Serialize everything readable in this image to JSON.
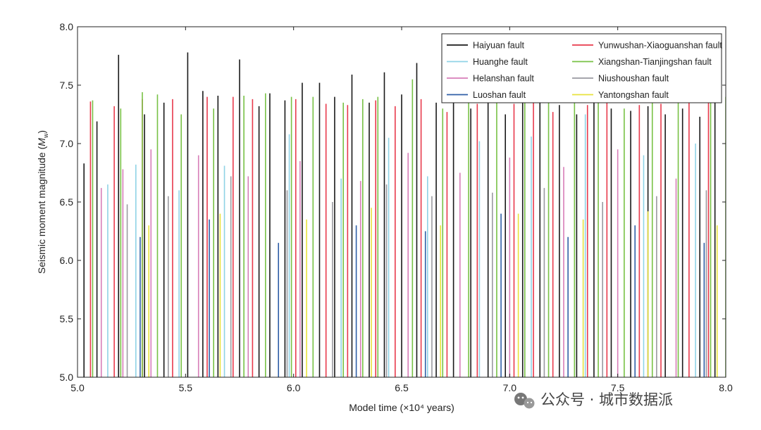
{
  "chart_data": {
    "type": "bar",
    "title": "",
    "xlabel": "Model time (×10⁴ years)",
    "ylabel": "Seismic moment magnitude (Mw)",
    "xlim": [
      5.0,
      8.0
    ],
    "ylim": [
      5.0,
      8.0
    ],
    "xticks": [
      "5.0",
      "5.5",
      "6.0",
      "6.5",
      "7.0",
      "7.5",
      "8.0"
    ],
    "yticks": [
      "5.0",
      "5.5",
      "6.0",
      "6.5",
      "7.0",
      "7.5",
      "8.0"
    ],
    "legend_position": "top-right",
    "series": [
      {
        "name": "Haiyuan fault",
        "color": "#1a1a1a",
        "x": [
          5.03,
          5.09,
          5.19,
          5.31,
          5.4,
          5.51,
          5.58,
          5.65,
          5.75,
          5.84,
          5.89,
          5.96,
          6.04,
          6.12,
          6.19,
          6.27,
          6.35,
          6.42,
          6.5,
          6.57,
          6.66,
          6.74,
          6.82,
          6.9,
          6.98,
          7.06,
          7.14,
          7.23,
          7.31,
          7.39,
          7.47,
          7.56,
          7.64,
          7.72,
          7.8,
          7.88,
          7.95
        ],
        "y": [
          6.83,
          7.19,
          7.76,
          7.25,
          7.35,
          7.78,
          7.45,
          7.41,
          7.72,
          7.32,
          7.43,
          7.37,
          7.52,
          7.52,
          7.4,
          7.59,
          7.35,
          7.61,
          7.42,
          7.69,
          7.35,
          7.45,
          7.3,
          7.38,
          7.25,
          7.4,
          7.4,
          7.33,
          7.25,
          7.35,
          7.3,
          7.28,
          7.32,
          7.25,
          7.3,
          7.23,
          7.38
        ]
      },
      {
        "name": "Huanghe fault",
        "color": "#8fd3e6",
        "x": [
          5.14,
          5.27,
          5.47,
          5.68,
          5.98,
          6.22,
          6.44,
          6.62,
          6.86,
          7.1,
          7.35,
          7.62,
          7.86
        ],
        "y": [
          6.65,
          6.82,
          6.6,
          6.81,
          7.08,
          6.7,
          7.05,
          6.72,
          7.02,
          7.06,
          7.25,
          6.9,
          7.0
        ]
      },
      {
        "name": "Helanshan fault",
        "color": "#d77db8",
        "x": [
          5.11,
          5.21,
          5.34,
          5.56,
          5.79,
          6.03,
          6.31,
          6.53,
          6.77,
          7.0,
          7.25,
          7.5,
          7.77
        ],
        "y": [
          6.62,
          6.78,
          6.95,
          6.9,
          6.72,
          6.85,
          6.68,
          6.92,
          6.75,
          6.88,
          6.8,
          6.95,
          6.7
        ]
      },
      {
        "name": "Luoshan fault",
        "color": "#2f5fa6",
        "x": [
          5.29,
          5.61,
          5.93,
          6.29,
          6.61,
          6.96,
          7.27,
          7.58,
          7.9
        ],
        "y": [
          6.2,
          6.35,
          6.15,
          6.3,
          6.25,
          6.4,
          6.2,
          6.3,
          6.15
        ]
      },
      {
        "name": "Yunwushan-Xiaoguanshan fault",
        "color": "#e83a4c",
        "x": [
          5.06,
          5.17,
          5.3,
          5.44,
          5.6,
          5.72,
          5.81,
          6.01,
          6.15,
          6.25,
          6.38,
          6.47,
          6.59,
          6.71,
          6.85,
          7.02,
          7.11,
          7.2,
          7.36,
          7.45,
          7.6,
          7.7,
          7.83,
          7.92
        ],
        "y": [
          7.36,
          7.32,
          7.38,
          7.38,
          7.4,
          7.4,
          7.38,
          7.38,
          7.34,
          7.33,
          7.37,
          7.32,
          7.38,
          7.27,
          7.34,
          7.34,
          7.37,
          7.27,
          7.33,
          7.36,
          7.33,
          7.34,
          7.35,
          7.37
        ]
      },
      {
        "name": "Xiangshan-Tianjingshan fault",
        "color": "#78c145",
        "x": [
          5.07,
          5.2,
          5.3,
          5.37,
          5.48,
          5.63,
          5.77,
          5.87,
          5.99,
          6.09,
          6.23,
          6.32,
          6.39,
          6.55,
          6.69,
          6.81,
          6.94,
          7.07,
          7.18,
          7.3,
          7.41,
          7.53,
          7.66,
          7.78,
          7.93,
          8.0
        ],
        "y": [
          7.37,
          7.3,
          7.44,
          7.42,
          7.25,
          7.3,
          7.41,
          7.43,
          7.4,
          7.4,
          7.35,
          7.38,
          7.4,
          7.55,
          7.3,
          7.4,
          7.38,
          7.4,
          7.44,
          7.35,
          7.38,
          7.3,
          7.4,
          7.35,
          7.38,
          7.4
        ]
      },
      {
        "name": "Niushoushan fault",
        "color": "#9a9aa0",
        "x": [
          5.23,
          5.42,
          5.71,
          5.97,
          6.18,
          6.43,
          6.64,
          6.92,
          7.16,
          7.43,
          7.68,
          7.91
        ],
        "y": [
          6.48,
          6.55,
          6.72,
          6.6,
          6.5,
          6.65,
          6.55,
          6.58,
          6.62,
          6.5,
          6.55,
          6.6
        ]
      },
      {
        "name": "Yantongshan fault",
        "color": "#e8e23c",
        "x": [
          5.33,
          5.66,
          6.06,
          6.36,
          6.68,
          7.04,
          7.34,
          7.64,
          7.96
        ],
        "y": [
          6.3,
          6.4,
          6.35,
          6.45,
          6.3,
          6.4,
          6.35,
          6.42,
          6.3
        ]
      }
    ]
  },
  "watermark": {
    "text": "公众号 · 城市数据派",
    "icon": "wechat-icon"
  }
}
